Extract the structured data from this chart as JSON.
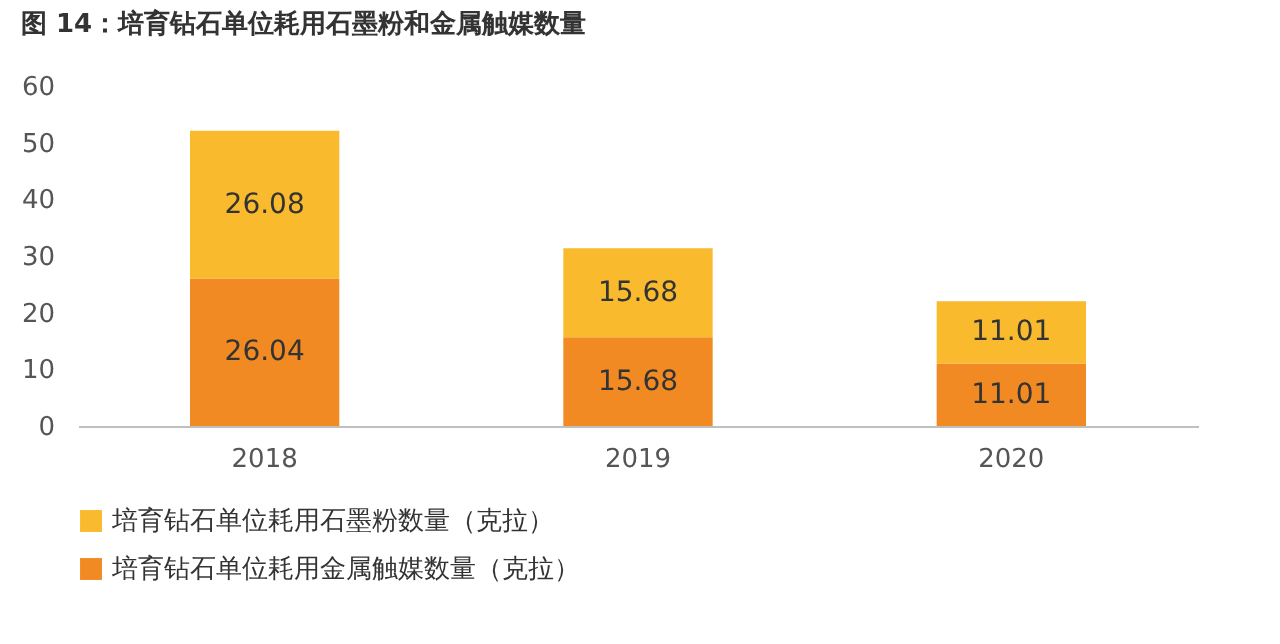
{
  "chart_data": {
    "type": "bar",
    "title": "图 14：培育钻石单位耗用石墨粉和金属触媒数量",
    "categories": [
      "2018",
      "2019",
      "2020"
    ],
    "stacked": true,
    "series": [
      {
        "name": "培育钻石单位耗用金属触媒数量（克拉）",
        "color": "#f28a24",
        "values": [
          26.04,
          15.68,
          11.01
        ]
      },
      {
        "name": "培育钻石单位耗用石墨粉数量（克拉）",
        "color": "#f9ba2e",
        "values": [
          26.08,
          15.68,
          11.01
        ]
      }
    ],
    "ylim": [
      0,
      60
    ],
    "yticks": [
      0,
      10,
      20,
      30,
      40,
      50,
      60
    ],
    "grid": false,
    "data_labels": true,
    "legend": "bottom"
  }
}
